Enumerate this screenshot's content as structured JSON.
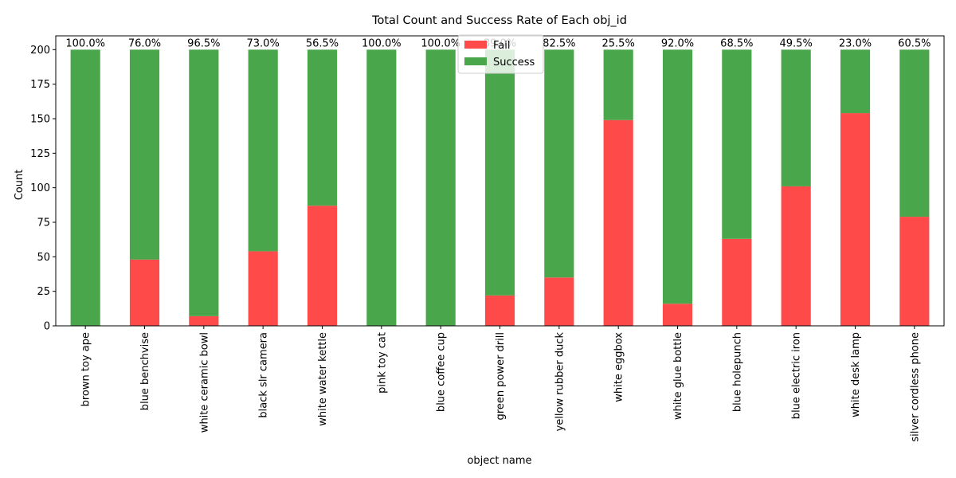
{
  "chart_data": {
    "type": "bar",
    "stacked": true,
    "title": "Total Count and Success Rate of Each obj_id",
    "xlabel": "object name",
    "ylabel": "Count",
    "ylim": [
      0,
      210
    ],
    "yticks": [
      0,
      25,
      50,
      75,
      100,
      125,
      150,
      175,
      200
    ],
    "grid": false,
    "legend_position": "upper-center",
    "categories": [
      "brown toy ape",
      "blue benchvise",
      "white ceramic bowl",
      "black slr camera",
      "white water kettle",
      "pink toy cat",
      "blue coffee cup",
      "green power drill",
      "yellow rubber duck",
      "white eggbox",
      "white glue bottle",
      "blue holepunch",
      "blue electric iron",
      "white desk lamp",
      "silver cordless phone"
    ],
    "series": [
      {
        "name": "Fail",
        "color": "#ff4a4a",
        "values": [
          0,
          48,
          7,
          54,
          87,
          0,
          0,
          22,
          35,
          149,
          16,
          63,
          101,
          154,
          79
        ]
      },
      {
        "name": "Success",
        "color": "#4aa64a",
        "values": [
          200,
          152,
          193,
          146,
          113,
          200,
          200,
          178,
          165,
          51,
          184,
          137,
          99,
          46,
          121
        ]
      }
    ],
    "rate_labels": [
      "100.0%",
      "76.0%",
      "96.5%",
      "73.0%",
      "56.5%",
      "100.0%",
      "100.0%",
      "89.0%",
      "82.5%",
      "25.5%",
      "92.0%",
      "68.5%",
      "49.5%",
      "23.0%",
      "60.5%"
    ]
  }
}
